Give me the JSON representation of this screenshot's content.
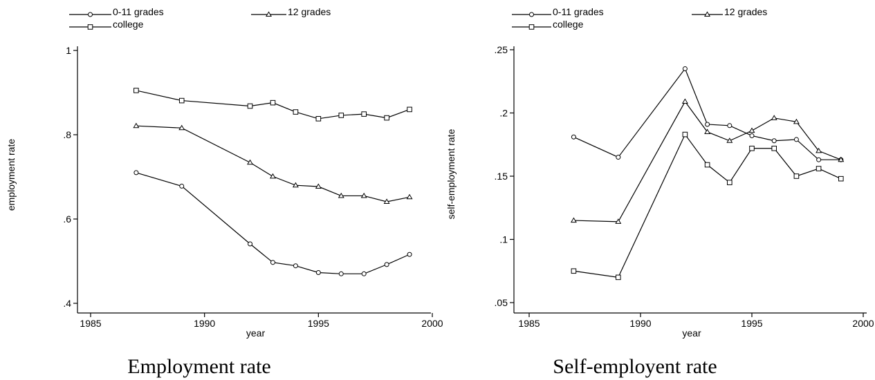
{
  "chart_data": [
    {
      "type": "line",
      "caption": "Employment rate",
      "xlabel": "year",
      "ylabel": "employment  rate",
      "x": [
        1987,
        1989,
        1992,
        1993,
        1994,
        1995,
        1996,
        1997,
        1998,
        1999
      ],
      "xlim": [
        1985,
        2000
      ],
      "ylim": [
        0.4,
        1.0
      ],
      "xticks": [
        1985,
        1990,
        1995,
        2000
      ],
      "xtick_labels": [
        "1985",
        "1990",
        "1995",
        "2000"
      ],
      "yticks": [
        0.4,
        0.6,
        0.8,
        1.0
      ],
      "ytick_labels": [
        ".4",
        ".6",
        ".8",
        "1"
      ],
      "grid": false,
      "legend_position": "top",
      "series": [
        {
          "name": "0-11 grades",
          "marker": "circle",
          "values": [
            0.71,
            0.678,
            0.541,
            0.497,
            0.489,
            0.473,
            0.47,
            0.47,
            0.492,
            0.516
          ]
        },
        {
          "name": "12 grades",
          "marker": "triangle",
          "values": [
            0.821,
            0.816,
            0.734,
            0.701,
            0.68,
            0.677,
            0.655,
            0.655,
            0.641,
            0.652
          ]
        },
        {
          "name": "college",
          "marker": "square",
          "values": [
            0.905,
            0.881,
            0.868,
            0.876,
            0.854,
            0.838,
            0.846,
            0.849,
            0.84,
            0.86
          ]
        }
      ]
    },
    {
      "type": "line",
      "caption": "Self-employent rate",
      "xlabel": "year",
      "ylabel": "self-employment  rate",
      "x": [
        1987,
        1989,
        1992,
        1993,
        1994,
        1995,
        1996,
        1997,
        1998,
        1999
      ],
      "xlim": [
        1985,
        2000
      ],
      "ylim": [
        0.05,
        0.25
      ],
      "xticks": [
        1985,
        1990,
        1995,
        2000
      ],
      "xtick_labels": [
        "1985",
        "1990",
        "1995",
        "2000"
      ],
      "yticks": [
        0.05,
        0.1,
        0.15,
        0.2,
        0.25
      ],
      "ytick_labels": [
        ".05",
        ".1",
        ".15",
        ".2",
        ".25"
      ],
      "grid": false,
      "legend_position": "top",
      "series": [
        {
          "name": "0-11 grades",
          "marker": "circle",
          "values": [
            0.181,
            0.165,
            0.235,
            0.191,
            0.19,
            0.182,
            0.178,
            0.179,
            0.163,
            0.163
          ]
        },
        {
          "name": "12 grades",
          "marker": "triangle",
          "values": [
            0.115,
            0.114,
            0.209,
            0.185,
            0.178,
            0.186,
            0.196,
            0.193,
            0.17,
            0.163
          ]
        },
        {
          "name": "college",
          "marker": "square",
          "values": [
            0.075,
            0.07,
            0.183,
            0.159,
            0.145,
            0.172,
            0.172,
            0.15,
            0.156,
            0.148
          ]
        }
      ]
    }
  ]
}
